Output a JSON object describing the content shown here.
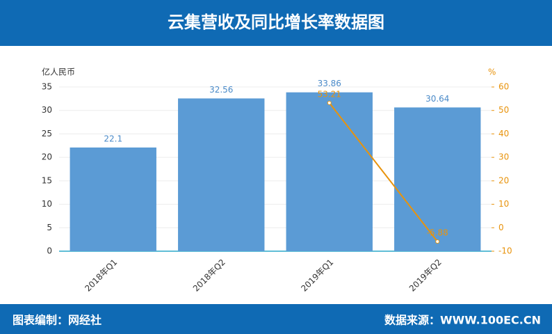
{
  "chart_data": {
    "type": "bar",
    "title": "云集营收及同比增长率数据图",
    "y_label": "亿人民币",
    "y2_label": "%",
    "categories": [
      "2018年Q1",
      "2018年Q2",
      "2019年Q1",
      "2019年Q2"
    ],
    "series": [
      {
        "type": "bar",
        "color": "#5b9bd5",
        "values": [
          22.1,
          32.56,
          33.86,
          30.64
        ]
      },
      {
        "type": "line",
        "axis": "y2",
        "color": "#e8930c",
        "values": [
          null,
          null,
          53.21,
          -5.88
        ]
      }
    ],
    "ylim": [
      0,
      35
    ],
    "yticks": [
      0,
      5,
      10,
      15,
      20,
      25,
      30,
      35
    ],
    "y2lim": [
      -10,
      60
    ],
    "y2ticks": [
      -10,
      0,
      10,
      20,
      30,
      40,
      50,
      60
    ],
    "grid": true
  },
  "footer": {
    "left": "图表编制：网经社",
    "right": "数据来源：WWW.100EC.CN"
  }
}
